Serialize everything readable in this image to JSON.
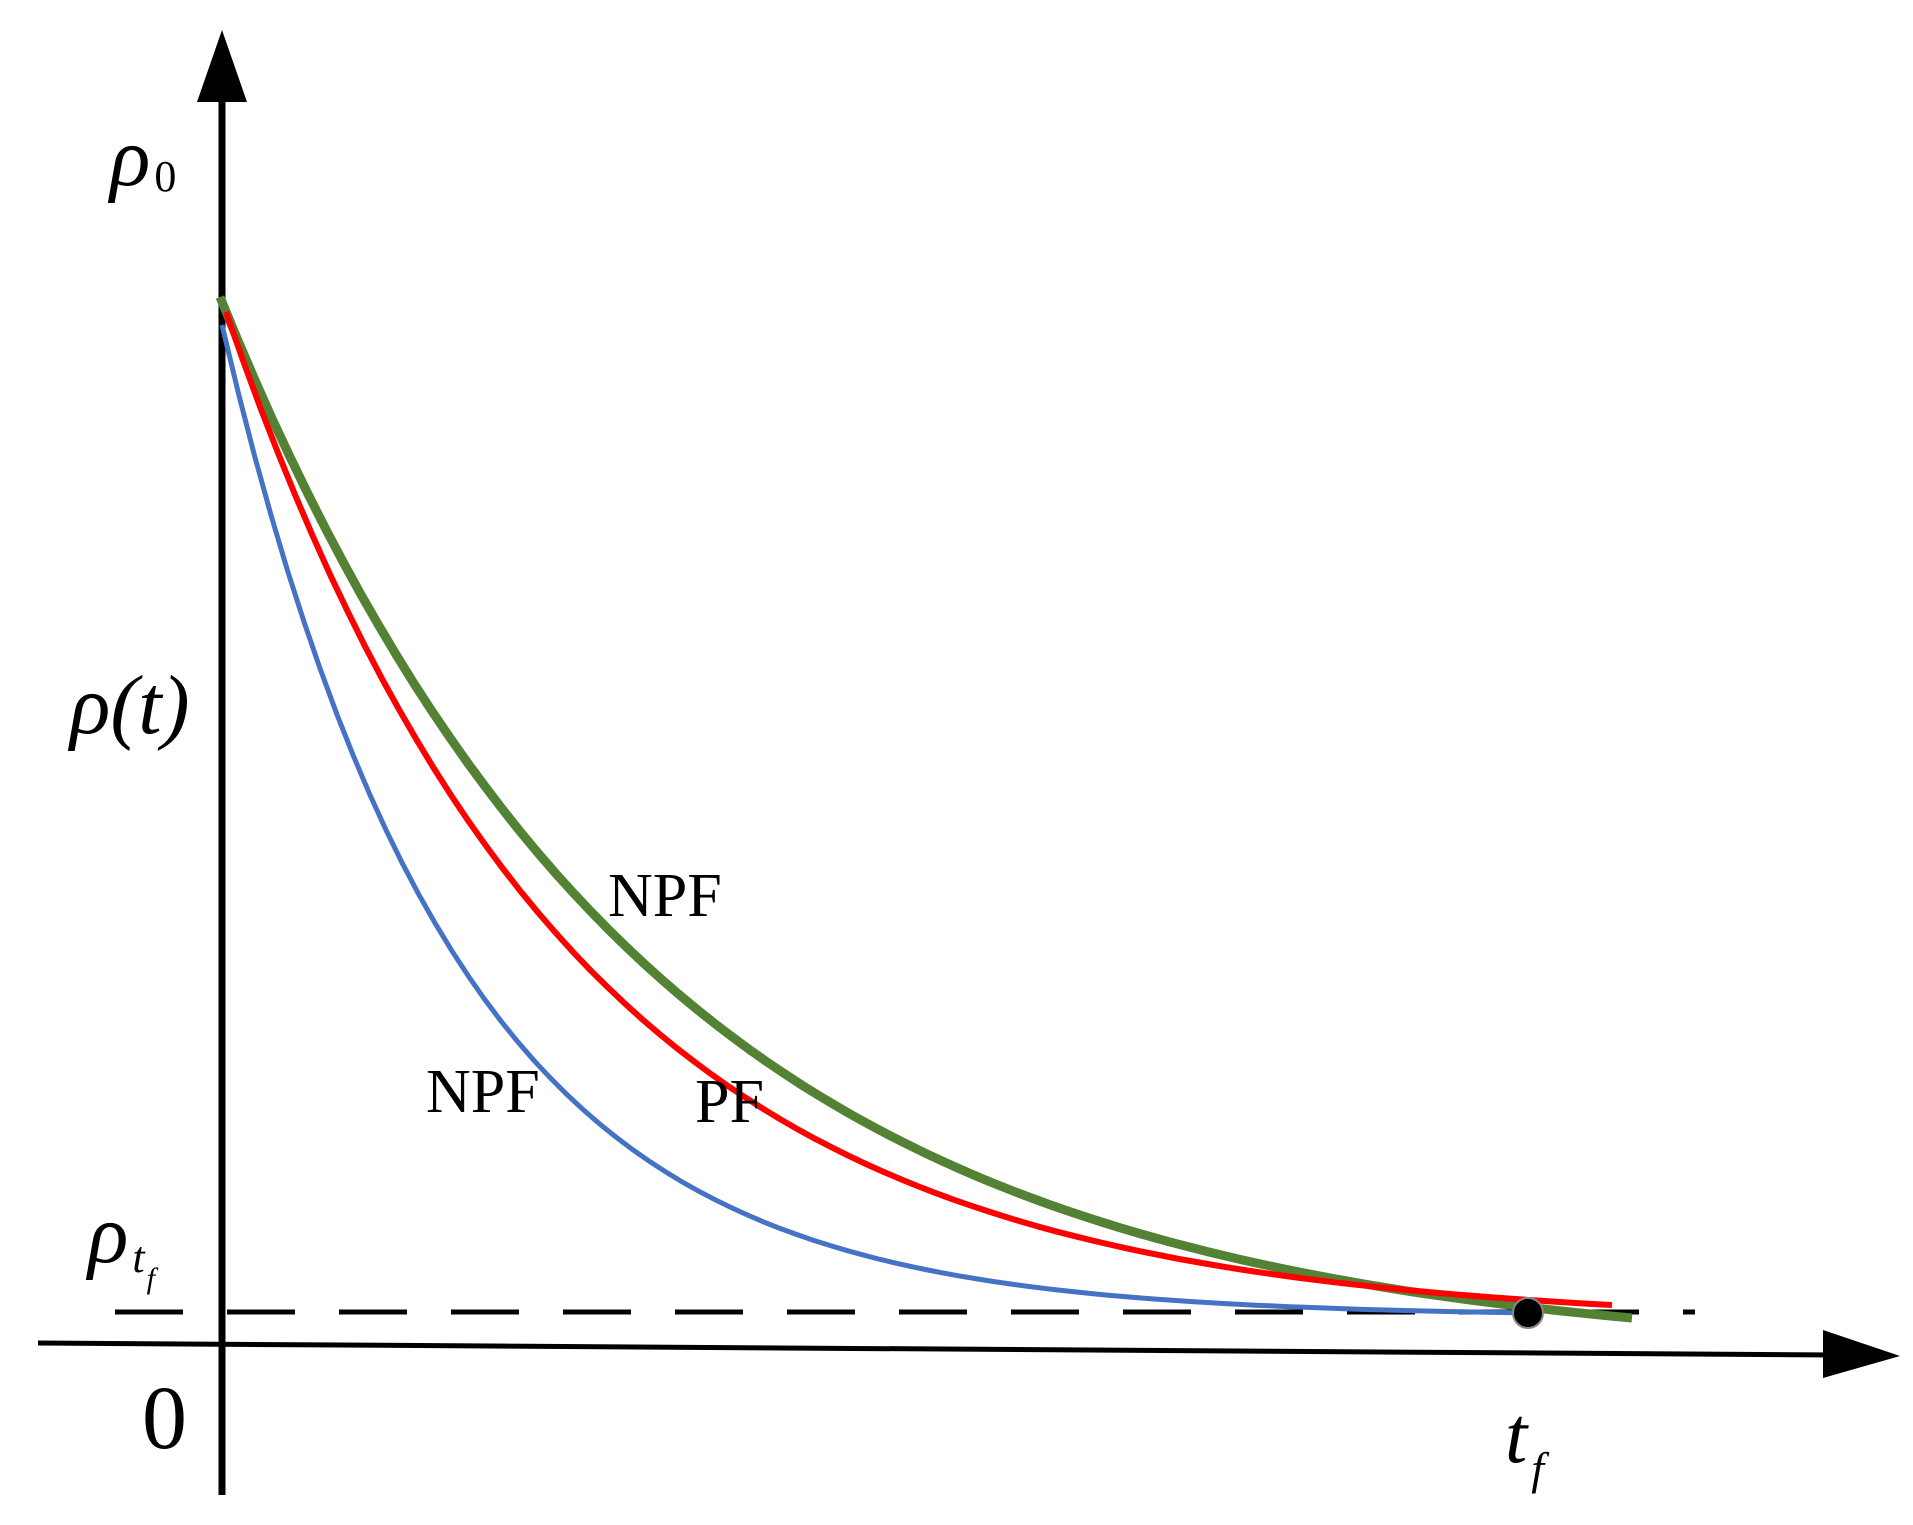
{
  "labels": {
    "rho0": {
      "symbol": "ρ",
      "sub": "0"
    },
    "rho_t": "ρ(t)",
    "rho_tf": {
      "symbol": "ρ",
      "sub": "t",
      "subsub": "f"
    },
    "origin": "0",
    "tf": {
      "symbol": "t",
      "sub": "f"
    },
    "npf_upper": "NPF",
    "pf": "PF",
    "npf_lower": "NPF"
  },
  "colors": {
    "axis": "#000000",
    "green": "#548235",
    "red": "#ff0000",
    "blue": "#4472c4",
    "dashed": "#000000",
    "marker": "#000000"
  },
  "curves": [
    {
      "id": "green-npf-curve",
      "color_key": "green",
      "decay": 3.3
    },
    {
      "id": "red-pf-curve",
      "color_key": "red",
      "decay": 4.0
    },
    {
      "id": "blue-npf-curve",
      "color_key": "blue",
      "decay": 5.7
    }
  ]
}
